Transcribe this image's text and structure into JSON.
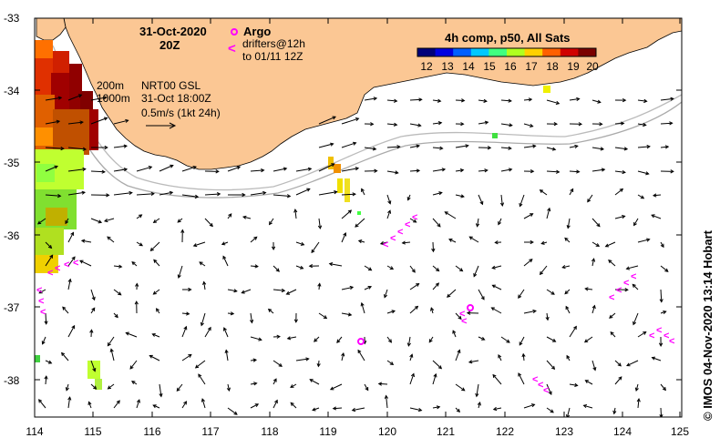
{
  "map": {
    "lon_ticks": [
      "114",
      "115",
      "116",
      "117",
      "118",
      "119",
      "120",
      "121",
      "122",
      "123",
      "124",
      "125"
    ],
    "lat_ticks": [
      "-33",
      "-34",
      "-35",
      "-36",
      "-37",
      "-38"
    ],
    "date_label": "31-Oct-2020",
    "time_label": "20Z",
    "product_line1": "NRT00 GSL",
    "product_line2": "31-Oct 18:00Z",
    "vector_scale_label": "0.5m/s (1kt 24h)",
    "isobath_200": "200m",
    "isobath_1000": "1000m"
  },
  "legend": {
    "argo_label": "Argo",
    "drifter_symbol": "<",
    "drifters_line1": "drifters@12h",
    "drifters_line2": "to 01/11 12Z",
    "colorbar_title": "4h comp, p50, All Sats",
    "colorbar_ticks": [
      "12",
      "13",
      "14",
      "15",
      "16",
      "17",
      "18",
      "19",
      "20"
    ],
    "colorbar_colors": [
      "#00007a",
      "#0000e0",
      "#0060ff",
      "#00c8ff",
      "#40ff80",
      "#b0ff20",
      "#ffd000",
      "#ff6000",
      "#d00000",
      "#7a0000"
    ]
  },
  "credit": "© IMOS 04-Nov-2020 13:14 Hobart"
}
